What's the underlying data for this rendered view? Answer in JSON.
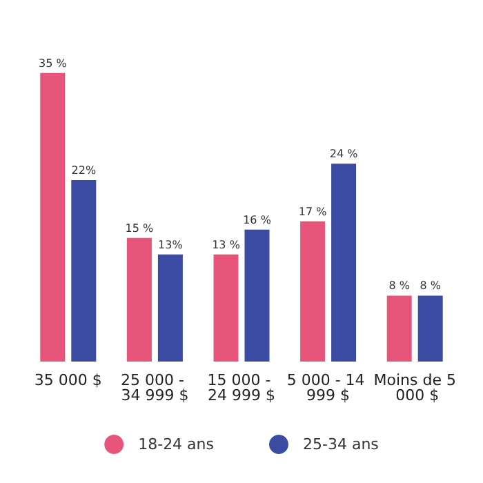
{
  "chart_data": {
    "type": "bar",
    "categories": [
      "35 000 $",
      "25 000 - 34 999 $",
      "15 000 - 24 999 $",
      "5 000 - 14 999 $",
      "Moins de 5 000 $"
    ],
    "series": [
      {
        "name": "18-24 ans",
        "color": "#e8557a",
        "values": [
          35,
          15,
          13,
          17,
          8
        ],
        "value_labels": [
          "35 %",
          "15 %",
          "13 %",
          "17 %",
          "8 %"
        ]
      },
      {
        "name": "25-34 ans",
        "color": "#3b4aa3",
        "values": [
          22,
          13,
          16,
          24,
          8
        ],
        "value_labels": [
          "22%",
          "13%",
          "16 %",
          "24 %",
          "8 %"
        ]
      }
    ],
    "legend": "bottom",
    "grid": false,
    "tick_labels": "x"
  }
}
